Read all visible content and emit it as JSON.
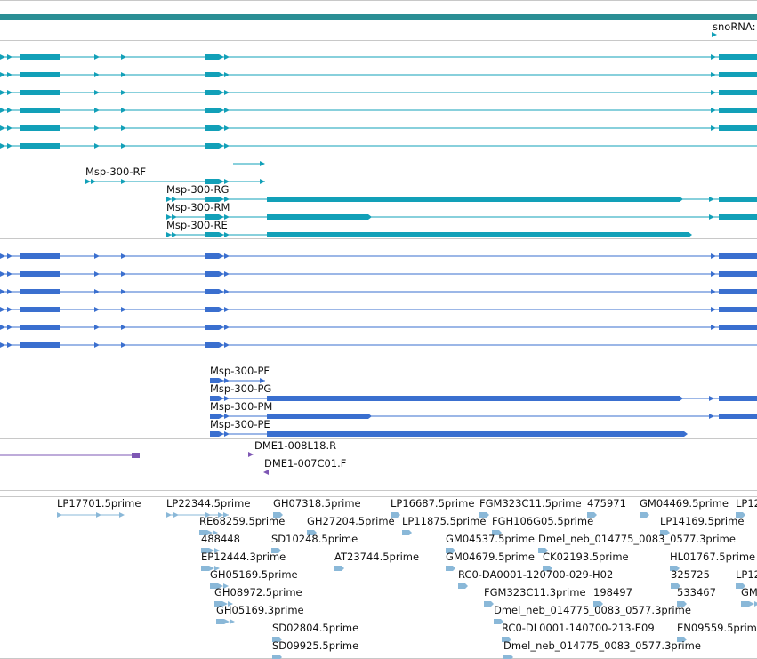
{
  "colors": {
    "gene_track": "#2a8f95",
    "transcript_rna": "#12a0b8",
    "transcript_protein": "#3a6fcf",
    "clone": "#7e57b4",
    "est": "#8ab8d8",
    "separator": "#b7b7b7"
  },
  "gene_track": {
    "snorna_label": "snoRNA:"
  },
  "transcripts_rna": {
    "labels": [
      {
        "name": "Msp-300-RF"
      },
      {
        "name": "Msp-300-RG"
      },
      {
        "name": "Msp-300-RM"
      },
      {
        "name": "Msp-300-RE"
      }
    ]
  },
  "transcripts_protein": {
    "labels": [
      {
        "name": "Msp-300-PF"
      },
      {
        "name": "Msp-300-PG"
      },
      {
        "name": "Msp-300-PM"
      },
      {
        "name": "Msp-300-PE"
      }
    ]
  },
  "clones": {
    "labels": [
      "DME1-008L18.R",
      "DME1-007C01.F"
    ]
  },
  "ests": {
    "labels": [
      "LP17701.5prime",
      "LP22344.5prime",
      "GH07318.5prime",
      "LP16687.5prime",
      "FGM323C11.5prime",
      "475971",
      "GM04469.5prime",
      "LP12",
      "RE68259.5prime",
      "GH27204.5prime",
      "LP11875.5prime",
      "FGH106G05.5prime",
      "LP14169.5prime",
      "488448",
      "SD10248.5prime",
      "GM04537.5prime",
      "Dmel_neb_014775_0083_0577.3prime",
      "EP12444.3prime",
      "AT23744.5prime",
      "GM04679.5prime",
      "CK02193.5prime",
      "HL01767.5prime",
      "GH05169.5prime",
      "RC0-DA0001-120700-029-H02",
      "325725",
      "LP12",
      "GH08972.5prime",
      "FGM323C11.3prime",
      "198497",
      "533467",
      "GM",
      "GH05169.3prime",
      "Dmel_neb_014775_0083_0577.3prime",
      "SD02804.5prime",
      "RC0-DL0001-140700-213-E09",
      "EN09559.5prime",
      "SD09925.5prime",
      "Dmel_neb_014775_0083_0577.3prime"
    ]
  }
}
